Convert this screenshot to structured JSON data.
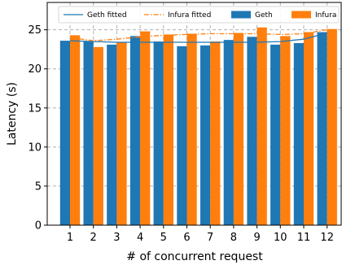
{
  "chart_data": {
    "type": "bar",
    "title": "",
    "xlabel": "# of concurrent request",
    "ylabel": "Latency (s)",
    "categories": [
      "1",
      "2",
      "3",
      "4",
      "5",
      "6",
      "7",
      "8",
      "9",
      "10",
      "11",
      "12"
    ],
    "ylim": [
      0,
      28.5
    ],
    "yticks": [
      0,
      5,
      10,
      15,
      20,
      25
    ],
    "grid": true,
    "legend_position": "top",
    "series": [
      {
        "name": "Geth",
        "kind": "bar",
        "color": "#1f77b4",
        "values": [
          23.6,
          23.5,
          23.1,
          24.2,
          23.5,
          22.9,
          23.0,
          23.7,
          24.1,
          23.1,
          23.3,
          24.7
        ]
      },
      {
        "name": "Infura",
        "kind": "bar",
        "color": "#ff7f0e",
        "values": [
          24.3,
          22.8,
          23.4,
          24.8,
          24.4,
          24.5,
          23.5,
          24.6,
          25.3,
          24.2,
          24.7,
          25.1
        ]
      },
      {
        "name": "Geth fitted",
        "kind": "line",
        "style": "solid",
        "color": "#1f77b4",
        "values": [
          23.6,
          23.5,
          23.4,
          23.4,
          23.4,
          23.4,
          23.4,
          23.4,
          23.4,
          23.5,
          23.8,
          24.6
        ]
      },
      {
        "name": "Infura fitted",
        "kind": "line",
        "style": "dashdot",
        "color": "#ff7f0e",
        "values": [
          24.0,
          23.6,
          23.8,
          24.1,
          24.3,
          24.4,
          24.5,
          24.5,
          24.5,
          24.4,
          24.5,
          25.0
        ]
      }
    ],
    "legend_order": [
      "Geth fitted",
      "Infura fitted",
      "Geth",
      "Infura"
    ]
  }
}
